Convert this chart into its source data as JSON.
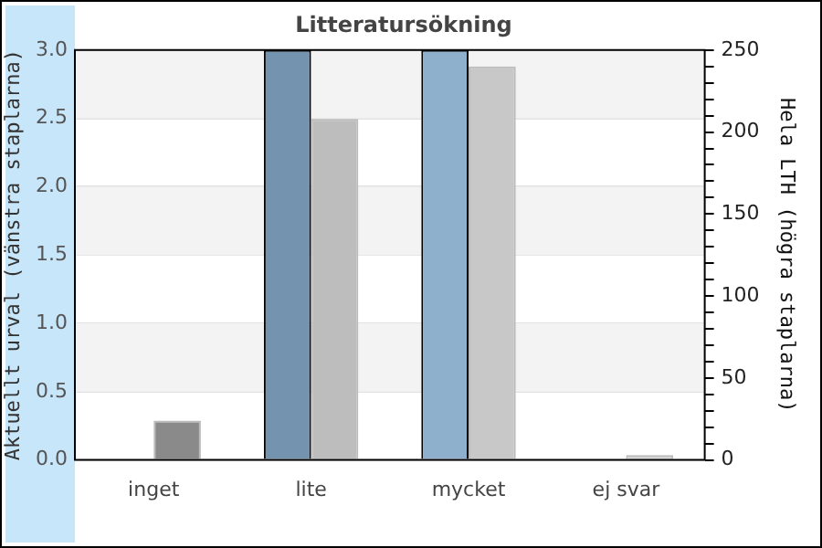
{
  "chart_data": {
    "type": "bar",
    "title": "Litteratursökning",
    "ylabel": "Aktuellt urval (vänstra staplarna)",
    "y2label": "Hela LTH (högra staplarna)",
    "categories": [
      "inget",
      "lite",
      "mycket",
      "ej svar"
    ],
    "series": [
      {
        "colors": [
          "#7393ae",
          "#7393ae",
          "#8fb0cc",
          "#8fb0cc"
        ],
        "values": [
          0,
          3,
          3,
          0
        ]
      },
      {
        "axis": "y2",
        "colors": [
          "#8a8a8a",
          "#bdbdbd",
          "#c8c8c8",
          "#d0d0d0"
        ],
        "values": [
          24,
          208,
          240,
          3
        ]
      }
    ],
    "ylim": [
      0,
      3
    ],
    "yticks": [
      {
        "value": 0,
        "label": "0.0"
      },
      {
        "value": 0.5,
        "label": "0.5"
      },
      {
        "value": 1,
        "label": "1.0"
      },
      {
        "value": 1.5,
        "label": "1.5"
      },
      {
        "value": 2,
        "label": "2.0"
      },
      {
        "value": 2.5,
        "label": "2.5"
      },
      {
        "value": 3,
        "label": "3.0"
      }
    ],
    "y2lim": [
      0,
      250
    ],
    "y2ticks": [
      0,
      {
        "value": 10,
        "label": null
      },
      {
        "value": 20,
        "label": null
      },
      {
        "value": 30,
        "label": null
      },
      {
        "value": 40,
        "label": null
      },
      50,
      {
        "value": 60,
        "label": null
      },
      {
        "value": 70,
        "label": null
      },
      {
        "value": 80,
        "label": null
      },
      {
        "value": 90,
        "label": null
      },
      100,
      {
        "value": 110,
        "label": null
      },
      {
        "value": 120,
        "label": null
      },
      {
        "value": 130,
        "label": null
      },
      {
        "value": 140,
        "label": null
      },
      150,
      {
        "value": 160,
        "label": null
      },
      {
        "value": 170,
        "label": null
      },
      {
        "value": 180,
        "label": null
      },
      {
        "value": 190,
        "label": null
      },
      200,
      {
        "value": 210,
        "label": null
      },
      {
        "value": 220,
        "label": null
      },
      {
        "value": 230,
        "label": null
      },
      {
        "value": 240,
        "label": null
      },
      250
    ],
    "grid": "y",
    "legend": false
  }
}
